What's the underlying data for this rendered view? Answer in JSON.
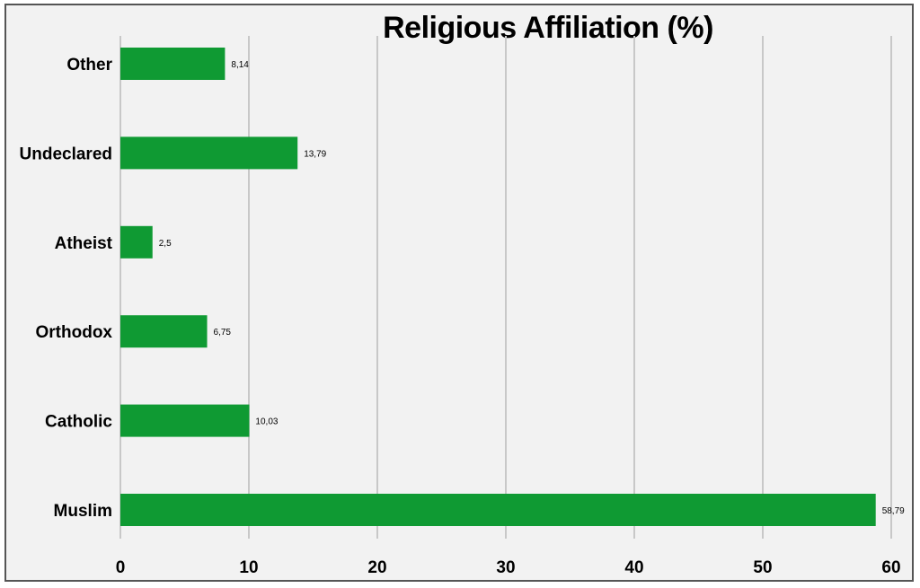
{
  "chart_data": {
    "type": "bar",
    "orientation": "horizontal",
    "title": "Religious Affiliation (%)",
    "categories": [
      "Muslim",
      "Catholic",
      "Orthodox",
      "Atheist",
      "Undeclared",
      "Other"
    ],
    "values": [
      58.79,
      10.03,
      6.75,
      2.5,
      13.79,
      8.14
    ],
    "data_labels": [
      "58,79",
      "10,03",
      "6,75",
      "2,5",
      "13,79",
      "8,14"
    ],
    "xlim": [
      0,
      60
    ],
    "x_ticks": [
      "0",
      "10",
      "20",
      "30",
      "40",
      "50",
      "60"
    ],
    "grid": "vertical",
    "legend": "none",
    "colors": {
      "bar": "#0f9a33",
      "grid": "#c8c8c8",
      "background": "#f2f2f2"
    }
  }
}
